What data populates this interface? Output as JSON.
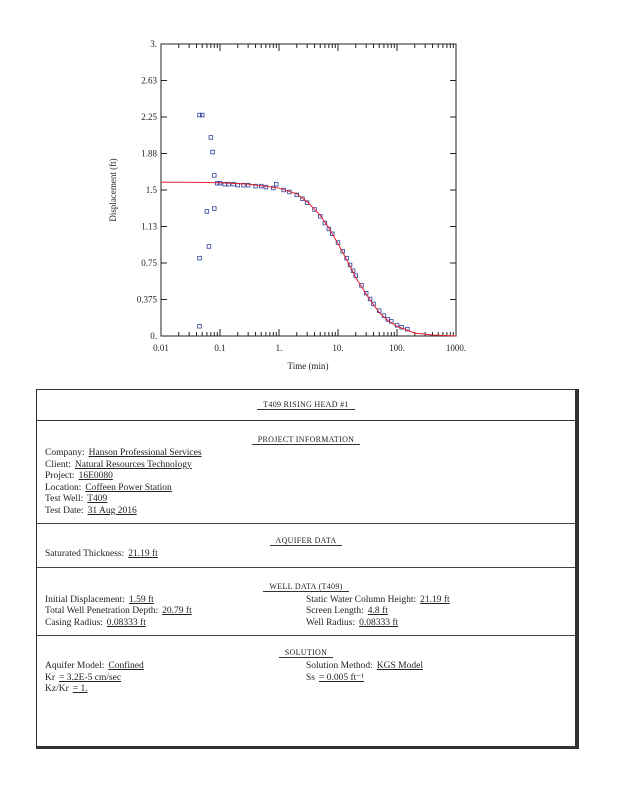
{
  "chart_data": {
    "type": "scatter",
    "x_label": "Time (min)",
    "y_label": "Displacement (ft)",
    "xscale": "log",
    "xlim": [
      0.01,
      1000
    ],
    "ylim": [
      0,
      3
    ],
    "xticks": [
      0.01,
      0.1,
      {
        "value": 1,
        "label": "1."
      },
      {
        "value": 10,
        "label": "10."
      },
      {
        "value": 100,
        "label": "100."
      },
      {
        "value": 1000,
        "label": "1000."
      }
    ],
    "yticks": [
      {
        "value": 0,
        "label": "0."
      },
      0.375,
      0.75,
      {
        "value": 1.125,
        "label": "1.13"
      },
      1.5,
      {
        "value": 1.875,
        "label": "1.88"
      },
      2.25,
      {
        "value": 2.625,
        "label": "2.63"
      },
      {
        "value": 3,
        "label": "3."
      }
    ],
    "grid": false,
    "series": [
      {
        "color": "#2b3f9a",
        "marker": "square",
        "x": [
          0.045,
          0.05,
          0.07,
          0.075,
          0.08,
          0.08,
          0.06,
          0.065,
          0.045,
          0.045,
          0.9,
          0.09,
          0.1,
          0.12,
          0.14,
          0.17,
          0.2,
          0.25,
          0.3,
          0.4,
          0.5,
          0.6,
          0.8,
          1.2,
          1.5,
          2,
          2.5,
          3,
          4,
          5,
          6,
          7,
          8,
          10,
          12,
          14,
          16,
          18,
          20,
          25,
          30,
          35,
          40,
          50,
          60,
          70,
          80,
          100,
          120,
          150
        ],
        "values": [
          2.27,
          2.27,
          2.04,
          1.89,
          1.65,
          1.31,
          1.28,
          0.92,
          0.8,
          0.1,
          1.56,
          1.57,
          1.57,
          1.56,
          1.56,
          1.56,
          1.55,
          1.55,
          1.55,
          1.54,
          1.54,
          1.53,
          1.52,
          1.5,
          1.48,
          1.45,
          1.41,
          1.37,
          1.3,
          1.23,
          1.16,
          1.1,
          1.05,
          0.96,
          0.87,
          0.8,
          0.73,
          0.67,
          0.62,
          0.52,
          0.44,
          0.38,
          0.33,
          0.26,
          0.21,
          0.17,
          0.15,
          0.11,
          0.09,
          0.07
        ]
      },
      {
        "color": "#e0202a",
        "marker": "line",
        "x": [
          0.01,
          0.03,
          0.1,
          0.3,
          1,
          2,
          3,
          5,
          7,
          10,
          15,
          20,
          30,
          50,
          70,
          100,
          200,
          400,
          1000
        ],
        "values": [
          1.58,
          1.58,
          1.575,
          1.56,
          1.52,
          1.46,
          1.38,
          1.24,
          1.11,
          0.95,
          0.75,
          0.6,
          0.43,
          0.24,
          0.16,
          0.1,
          0.03,
          0.01,
          0
        ]
      }
    ]
  },
  "report": {
    "title": "T409 RISING HEAD #1",
    "sections": [
      {
        "heading": "PROJECT INFORMATION",
        "left": [
          {
            "label": "Company:",
            "value": "Hanson Professional Services"
          },
          {
            "label": "Client:",
            "value": "Natural Resources Technology"
          },
          {
            "label": "Project:",
            "value": "16E0080"
          },
          {
            "label": "Location:",
            "value": "Coffeen Power Station"
          },
          {
            "label": "Test Well:",
            "value": "T409"
          },
          {
            "label": "Test Date:",
            "value": "31 Aug 2016"
          }
        ],
        "right": []
      },
      {
        "heading": "AQUIFER DATA",
        "left": [
          {
            "label": "Saturated Thickness:",
            "value": "21.19 ft"
          }
        ],
        "right": []
      },
      {
        "heading": "WELL DATA (T409)",
        "left": [
          {
            "label": "Initial Displacement:",
            "value": "1.59 ft"
          },
          {
            "label": "Total Well Penetration Depth:",
            "value": "20.79 ft"
          },
          {
            "label": "Casing Radius:",
            "value": "0.08333 ft"
          }
        ],
        "right": [
          {
            "label": "Static Water Column Height:",
            "value": "21.19 ft"
          },
          {
            "label": "Screen Length:",
            "value": "4.8 ft"
          },
          {
            "label": "Well Radius:",
            "value": "0.08333 ft"
          }
        ]
      },
      {
        "heading": "SOLUTION",
        "left": [
          {
            "label": "Aquifer Model:",
            "value": "Confined"
          },
          {
            "label": "Kr",
            "value": "= 3.2E-5 cm/sec"
          },
          {
            "label": "Kz/Kr",
            "value": "= 1."
          }
        ],
        "right": [
          {
            "label": "Solution Method:",
            "value": "KGS Model"
          },
          {
            "label": "Ss",
            "value": "= 0.005 ft⁻¹"
          }
        ]
      }
    ]
  }
}
